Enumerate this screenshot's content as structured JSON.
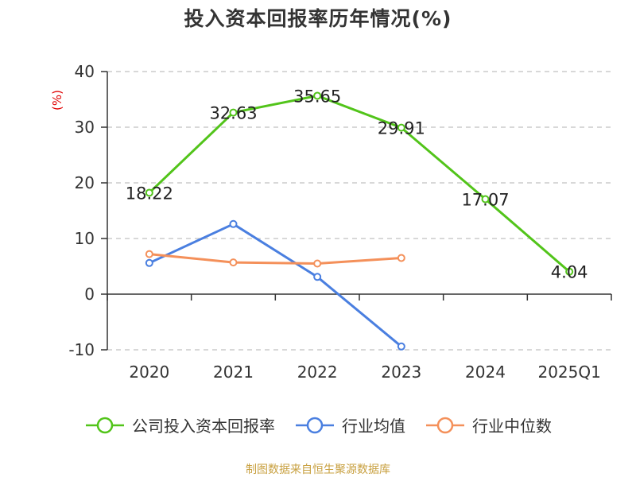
{
  "title": "投入资本回报率历年情况(%)",
  "source": "制图数据来自恒生聚源数据库",
  "colors": {
    "company": "#52c41a",
    "mean": "#4a7fe0",
    "median": "#f4905a",
    "unit": "#e00000"
  },
  "chart_data": {
    "type": "line",
    "title": "投入资本回报率历年情况(%)",
    "ylabel": "(%)",
    "ylim": [
      -10,
      40
    ],
    "yticks": [
      40,
      30,
      20,
      10,
      0,
      -10
    ],
    "categories": [
      "2020",
      "2021",
      "2022",
      "2023",
      "2024",
      "2025Q1"
    ],
    "grid": true,
    "legend_position": "bottom",
    "series": [
      {
        "name": "公司投入资本回报率",
        "values": [
          18.22,
          32.63,
          35.65,
          29.91,
          17.07,
          4.04
        ],
        "show_labels": true
      },
      {
        "name": "行业均值",
        "values": [
          5.6,
          12.6,
          3.1,
          -9.4,
          null,
          null
        ],
        "show_labels": false
      },
      {
        "name": "行业中位数",
        "values": [
          7.2,
          5.7,
          5.5,
          6.5,
          null,
          null
        ],
        "show_labels": false
      }
    ],
    "data_labels": [
      "18.22",
      "32.63",
      "35.65",
      "29.91",
      "17.07",
      "4.04"
    ]
  }
}
